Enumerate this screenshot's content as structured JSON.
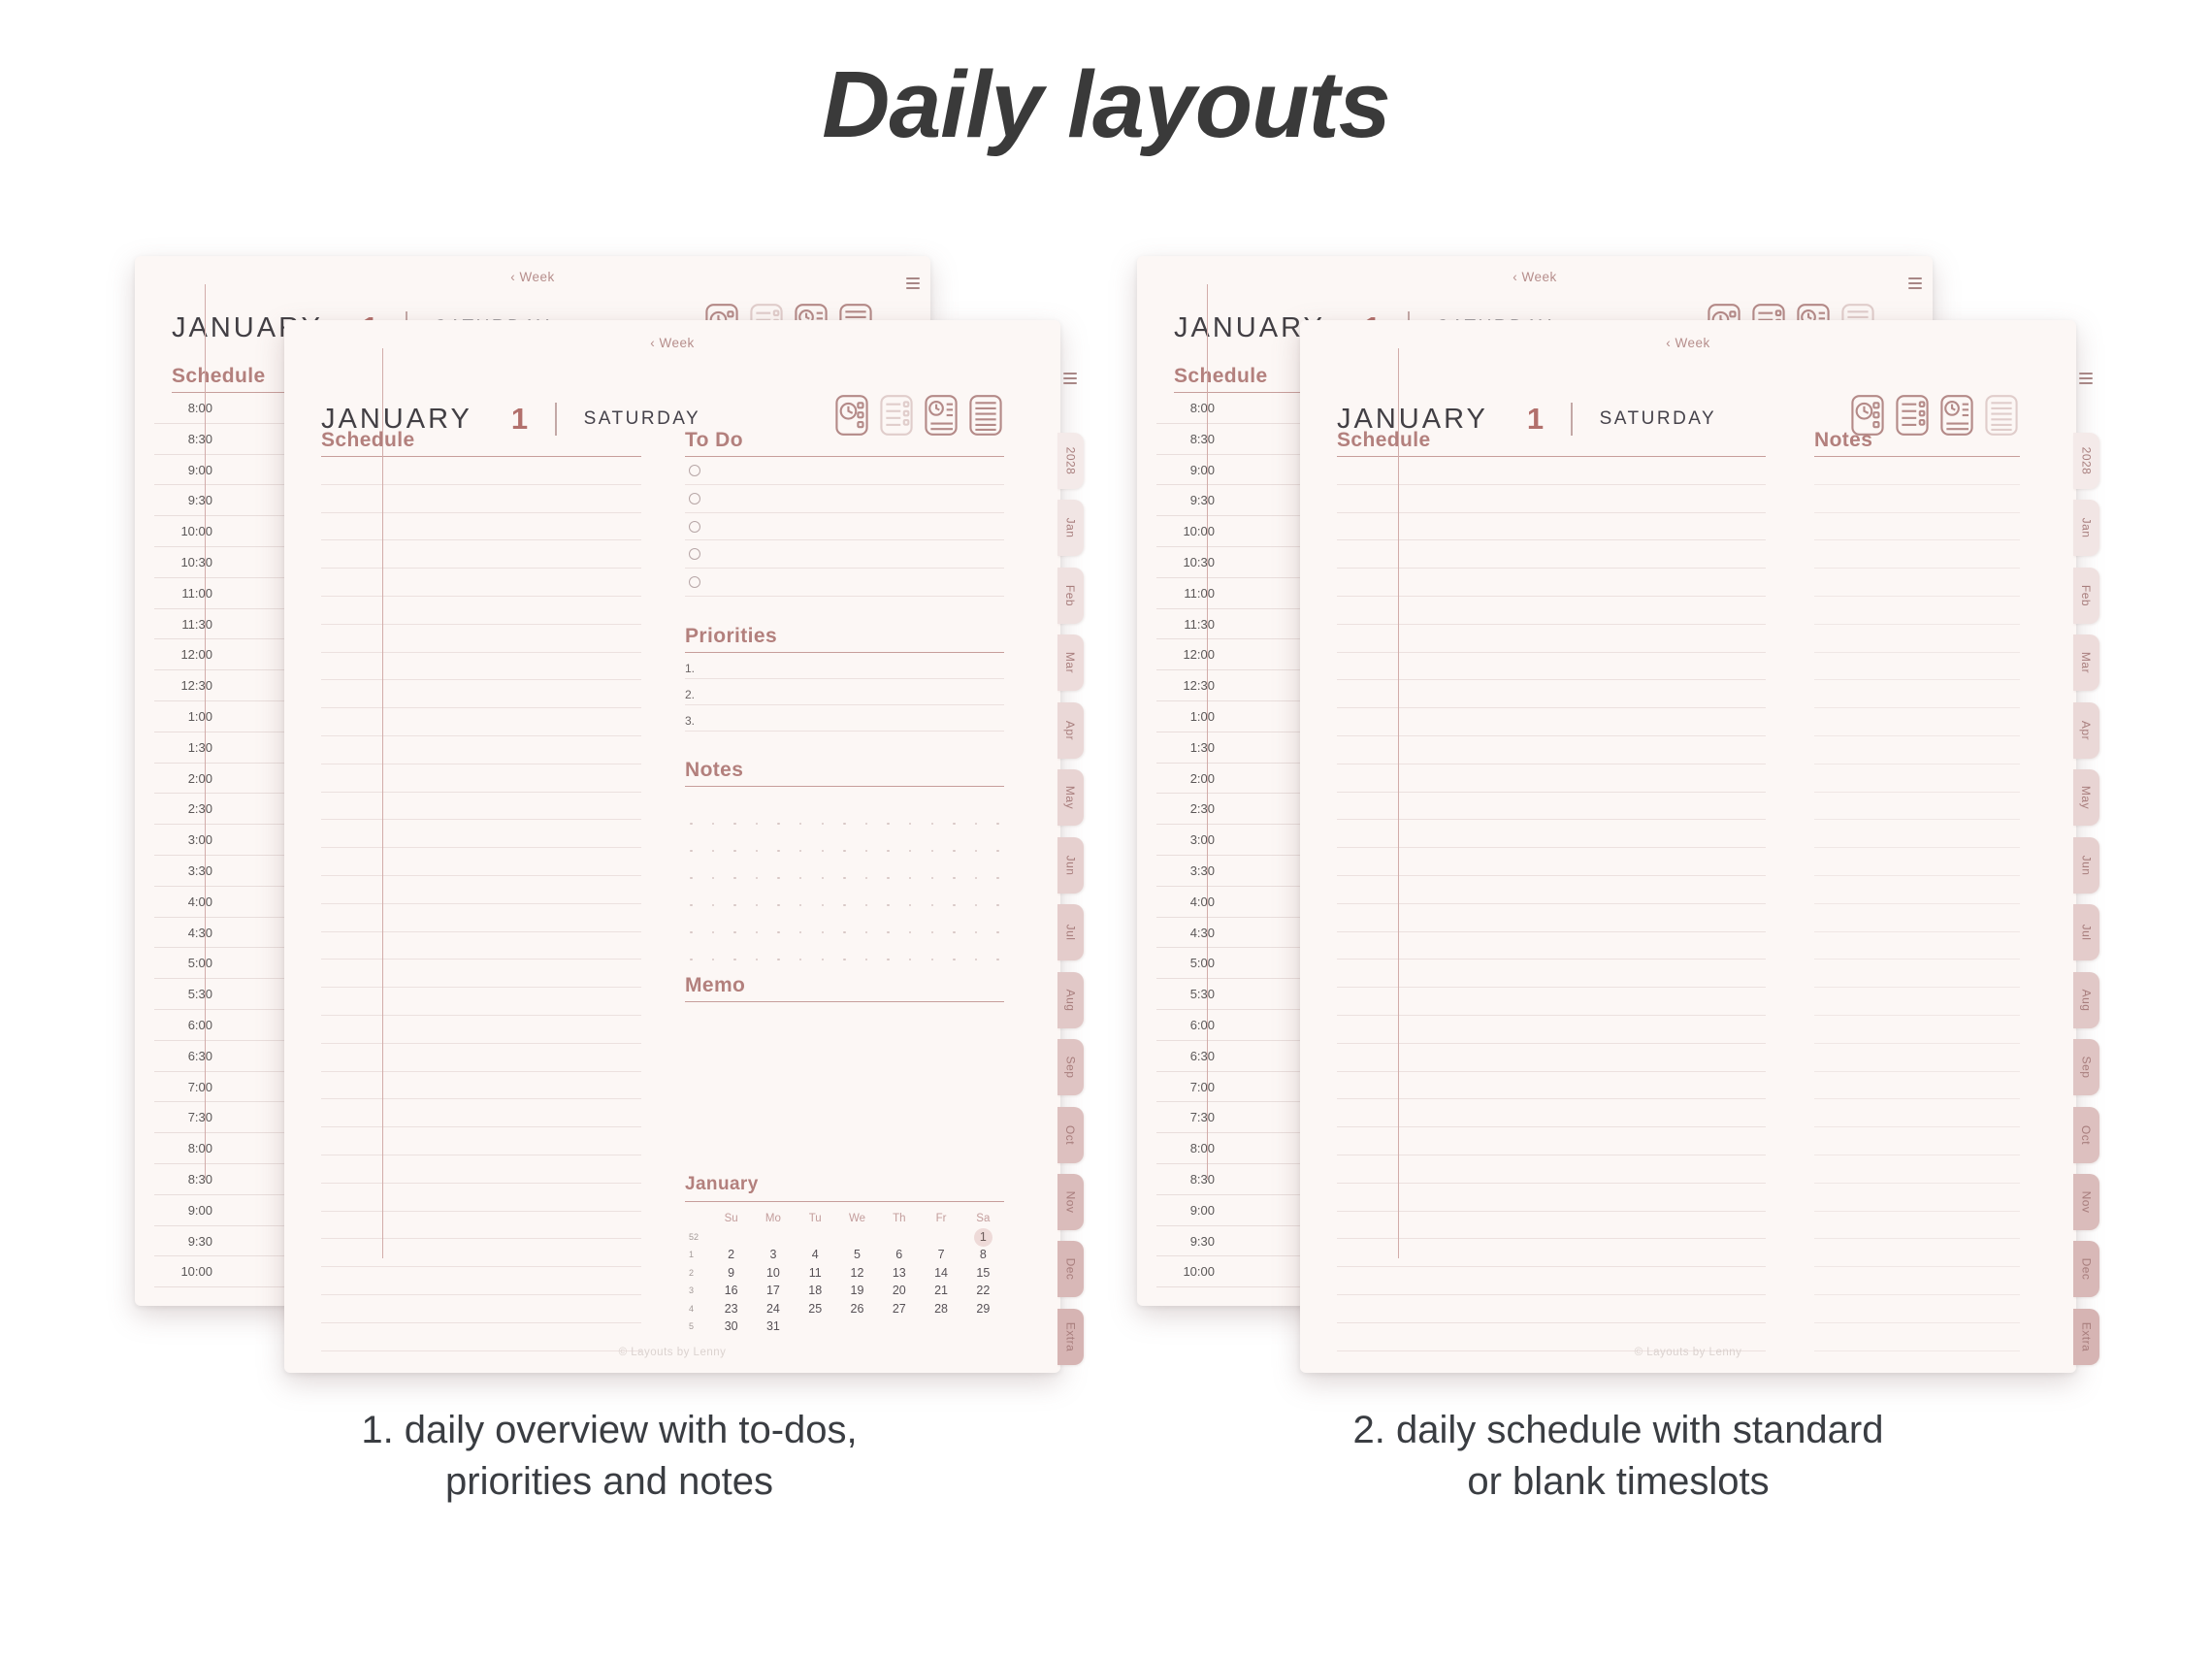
{
  "title": "Daily layouts",
  "captions": {
    "left": "1. daily overview with to-dos,\npriorities and notes",
    "right": "2. daily schedule with standard\nor blank timeslots"
  },
  "planner": {
    "week_link": "‹ Week",
    "month": "JANUARY",
    "day_number": "1",
    "weekday": "SATURDAY",
    "menu_icon": "hamburger-menu-icon",
    "layout_icons": [
      "daily-clock-grid-icon",
      "daily-overview-list-icon",
      "daily-clock-lines-icon",
      "daily-lined-page-icon"
    ],
    "tabs": [
      "2028",
      "Jan",
      "Feb",
      "Mar",
      "Apr",
      "May",
      "Jun",
      "Jul",
      "Aug",
      "Sep",
      "Oct",
      "Nov",
      "Dec",
      "Extra"
    ],
    "times": [
      "8:00",
      "8:30",
      "9:00",
      "9:30",
      "10:00",
      "10:30",
      "11:00",
      "11:30",
      "12:00",
      "12:30",
      "1:00",
      "1:30",
      "2:00",
      "2:30",
      "3:00",
      "3:30",
      "4:00",
      "4:30",
      "5:00",
      "5:30",
      "6:00",
      "6:30",
      "7:00",
      "7:30",
      "8:00",
      "8:30",
      "9:00",
      "9:30",
      "10:00"
    ],
    "sections": {
      "schedule": "Schedule",
      "todo": "To Do",
      "priorities": "Priorities",
      "notes": "Notes",
      "memo": "Memo"
    },
    "priority_numbers": [
      "1.",
      "2.",
      "3."
    ],
    "todo_row_count": 5,
    "schedule_row_count": 32,
    "notes_row_count": 32,
    "dot_grid": {
      "rows": 6,
      "cols": 15
    },
    "calendar": {
      "title": "January",
      "day_headers": [
        "Su",
        "Mo",
        "Tu",
        "We",
        "Th",
        "Fr",
        "Sa"
      ],
      "weeks": [
        {
          "num": "52",
          "days": [
            "",
            "",
            "",
            "",
            "",
            "",
            "1"
          ]
        },
        {
          "num": "1",
          "days": [
            "2",
            "3",
            "4",
            "5",
            "6",
            "7",
            "8"
          ]
        },
        {
          "num": "2",
          "days": [
            "9",
            "10",
            "11",
            "12",
            "13",
            "14",
            "15"
          ]
        },
        {
          "num": "3",
          "days": [
            "16",
            "17",
            "18",
            "19",
            "20",
            "21",
            "22"
          ]
        },
        {
          "num": "4",
          "days": [
            "23",
            "24",
            "25",
            "26",
            "27",
            "28",
            "29"
          ]
        },
        {
          "num": "5",
          "days": [
            "30",
            "31",
            "",
            "",
            "",
            "",
            ""
          ]
        }
      ],
      "highlight": {
        "week": 0,
        "day_index": 6
      }
    },
    "footer": "© Layouts by Lenny"
  },
  "colors": {
    "accent_rose": "#b3807d",
    "day_number_rose": "#b2706c",
    "tab_text": "#a87e7d",
    "page_bg": "#fcf7f5",
    "highlight_bg": "#eedad8"
  }
}
